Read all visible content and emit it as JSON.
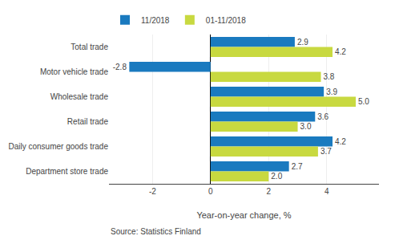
{
  "chart_data": {
    "type": "bar",
    "orientation": "horizontal",
    "categories": [
      "Total trade",
      "Motor vehicle trade",
      "Wholesale trade",
      "Retail trade",
      "Daily consumer goods trade",
      "Department store trade"
    ],
    "series": [
      {
        "name": "11/2018",
        "color": "#1a7abf",
        "values": [
          2.9,
          -2.8,
          3.9,
          3.6,
          4.2,
          2.7
        ]
      },
      {
        "name": "01-11/2018",
        "color": "#c8d940",
        "values": [
          4.2,
          3.8,
          5.0,
          3.0,
          3.7,
          2.0
        ],
        "value_labels": [
          "4.2",
          "3.8",
          "5.0",
          "3.0",
          "3.7",
          "2.0"
        ]
      }
    ],
    "xlabel": "Year-on-year change, %",
    "xlim": [
      -3.5,
      5.8
    ],
    "xticks": [
      -2,
      0,
      2,
      4
    ],
    "grid": true,
    "legend": "top",
    "data_labels": true,
    "annotations": [
      "Source: Statistics Finland"
    ]
  }
}
